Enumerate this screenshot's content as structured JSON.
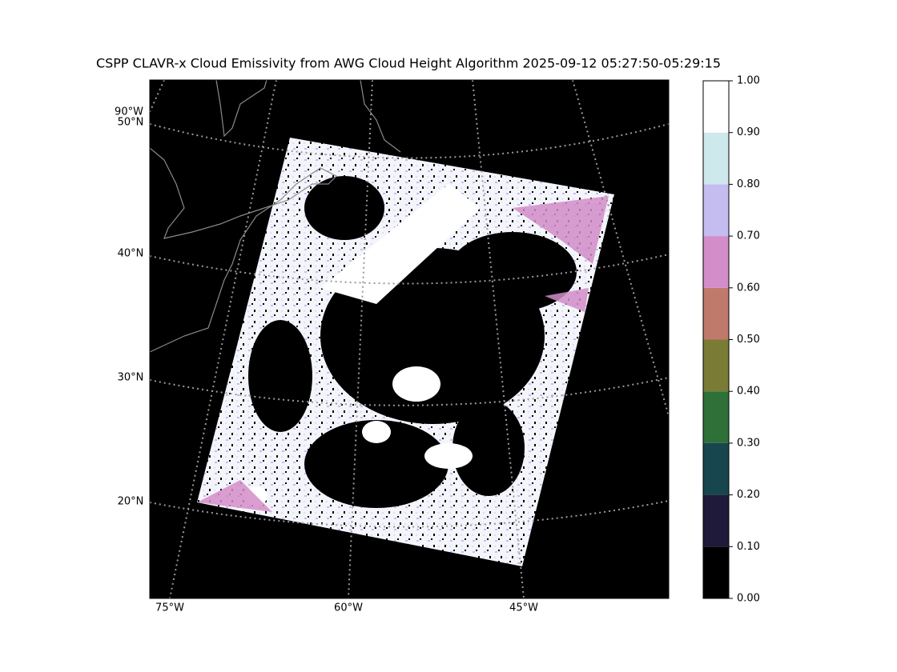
{
  "map": {
    "title": "CSPP CLAVR-x Cloud Emissivity from AWG Cloud Height Algorithm 2025-09-12 05:27:50-05:29:15",
    "lat_labels": [
      "50°N",
      "40°N",
      "30°N",
      "20°N"
    ],
    "lon_labels": [
      "90°W",
      "75°W",
      "60°W",
      "45°W"
    ]
  },
  "colorbar": {
    "ticks": [
      {
        "value": 0,
        "label": "0.00"
      },
      {
        "value": 0.1,
        "label": "0.10"
      },
      {
        "value": 0.2,
        "label": "0.20"
      },
      {
        "value": 0.3,
        "label": "0.30"
      },
      {
        "value": 0.4,
        "label": "0.40"
      },
      {
        "value": 0.5,
        "label": "0.50"
      },
      {
        "value": 0.6,
        "label": "0.60"
      },
      {
        "value": 0.7,
        "label": "0.70"
      },
      {
        "value": 0.8,
        "label": "0.80"
      },
      {
        "value": 0.9,
        "label": "0.90"
      },
      {
        "value": 1,
        "label": "1.00"
      }
    ],
    "lim": [
      0,
      1
    ],
    "colors": [
      "#000000",
      "#1f1a3a",
      "#17464f",
      "#2e7038",
      "#7a7c35",
      "#c07a6c",
      "#d38dc8",
      "#c5bcf0",
      "#cde9ec",
      "#ffffff"
    ]
  }
}
